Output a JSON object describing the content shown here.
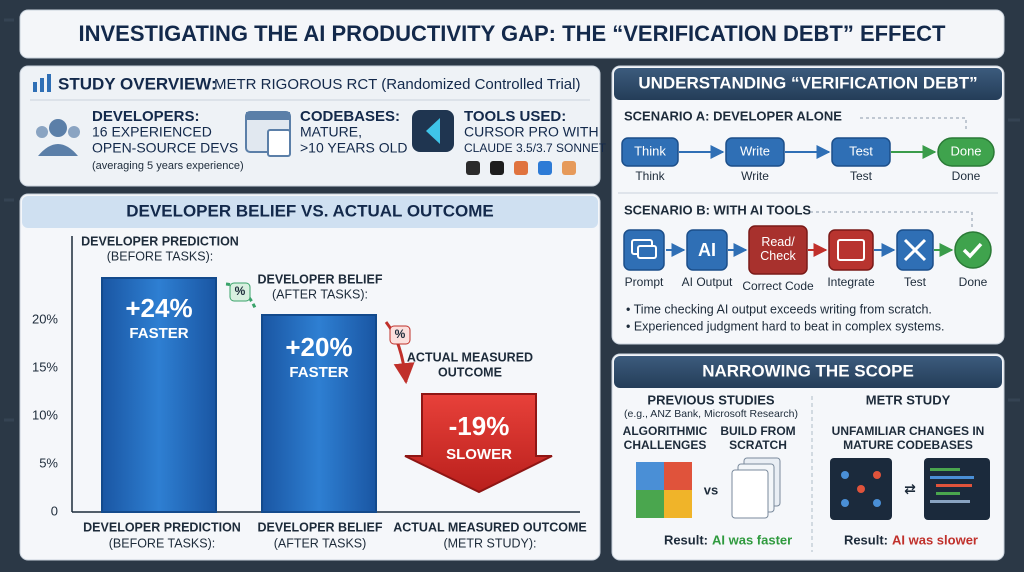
{
  "title": "INVESTIGATING THE AI PRODUCTIVITY GAP: THE “VERIFICATION DEBT” EFFECT",
  "study_overview": {
    "heading": "STUDY OVERVIEW:",
    "subheading": "METR RIGOROUS RCT (Randomized Controlled Trial)",
    "items": [
      {
        "label": "DEVELOPERS:",
        "lines": [
          "16 EXPERIENCED",
          "OPEN-SOURCE DEVS"
        ],
        "note": "(averaging 5 years experience)"
      },
      {
        "label": "CODEBASES:",
        "lines": [
          "MATURE,",
          ">10 YEARS OLD"
        ]
      },
      {
        "label": "TOOLS USED:",
        "lines": [
          "CURSOR PRO WITH",
          "CLAUDE 3.5/3.7 SONNET"
        ]
      }
    ]
  },
  "comparison": {
    "heading": "DEVELOPER BELIEF VS. ACTUAL OUTCOME",
    "axis_labels": [
      "20%",
      "15%",
      "10%",
      "5%",
      "0"
    ],
    "badge": "%",
    "bars": [
      {
        "title": [
          "DEVELOPER PREDICTION",
          "(BEFORE TASKS):"
        ],
        "value": "+24%",
        "direction": "FASTER",
        "caption": [
          "DEVELOPER PREDICTION",
          "(BEFORE TASKS):"
        ]
      },
      {
        "title": [
          "DEVELOPER BELIEF",
          "(AFTER TASKS):"
        ],
        "value": "+20%",
        "direction": "FASTER",
        "caption": [
          "DEVELOPER BELIEF",
          "(AFTER TASKS)"
        ]
      },
      {
        "title": [
          "ACTUAL MEASURED",
          "OUTCOME"
        ],
        "value": "-19%",
        "direction": "SLOWER",
        "caption": [
          "ACTUAL MEASURED OUTCOME",
          "(METR STUDY):"
        ]
      }
    ]
  },
  "verification_debt": {
    "heading": "UNDERSTANDING “VERIFICATION DEBT”",
    "scenario_a": {
      "label": "SCENARIO A: DEVELOPER ALONE",
      "steps": [
        {
          "node": "Think",
          "caption": "Think"
        },
        {
          "node": "Write",
          "caption": "Write"
        },
        {
          "node": "Test",
          "caption": "Test"
        },
        {
          "node": "Done",
          "caption": "Done"
        }
      ]
    },
    "scenario_b": {
      "label": "SCENARIO B: WITH AI TOOLS",
      "steps": [
        {
          "caption": "Prompt"
        },
        {
          "node": "AI",
          "caption": "AI Output"
        },
        {
          "node": "Read/\nCheck",
          "caption": "Correct Code"
        },
        {
          "caption": "Integrate"
        },
        {
          "caption": "Test"
        },
        {
          "caption": "Done"
        }
      ]
    },
    "bullets": [
      "• Time checking AI output exceeds writing from scratch.",
      "• Experienced judgment hard to beat in complex systems."
    ]
  },
  "scope": {
    "heading": "NARROWING THE SCOPE",
    "previous": {
      "title": "PREVIOUS STUDIES",
      "note": "(e.g., ANZ Bank, Microsoft Research)",
      "left": [
        "ALGORITHMIC",
        "CHALLENGES"
      ],
      "right": [
        "BUILD FROM",
        "SCRATCH"
      ],
      "vs": "vs",
      "result_label": "Result:",
      "result": "AI was faster"
    },
    "metr": {
      "title": "METR STUDY",
      "lines": [
        "UNFAMILIAR CHANGES IN",
        "MATURE CODEBASES"
      ],
      "result_label": "Result:",
      "result": "AI was slower"
    }
  }
}
